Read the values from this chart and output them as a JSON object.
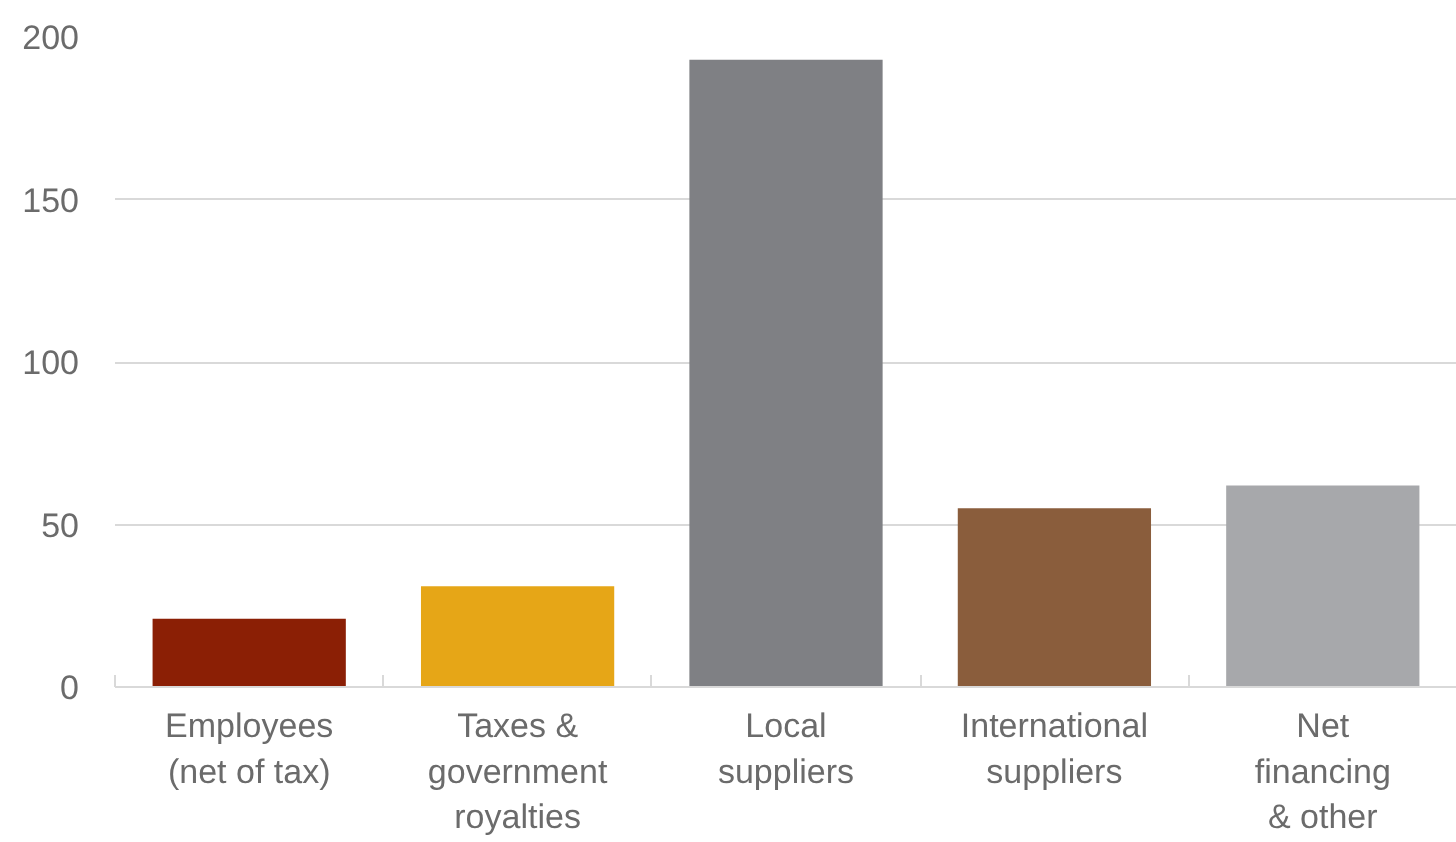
{
  "chart_data": {
    "type": "bar",
    "categories": [
      "Employees\n(net of tax)",
      "Taxes &\ngovernment\nroyalties",
      "Local\nsuppliers",
      "International\nsuppliers",
      "Net\nfinancing\n& other"
    ],
    "values": [
      21,
      31,
      193,
      55,
      62
    ],
    "colors": [
      "#8b1f05",
      "#e6a617",
      "#7f8084",
      "#8a5d3c",
      "#a7a8ab"
    ],
    "ylim": [
      0,
      200
    ],
    "yticks": [
      0,
      50,
      100,
      150,
      200
    ],
    "grid": "y"
  }
}
